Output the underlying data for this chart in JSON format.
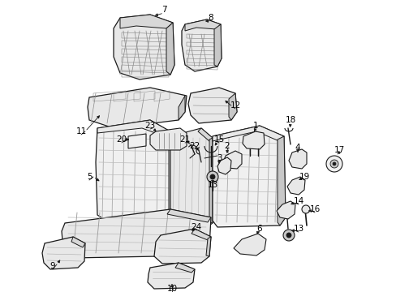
{
  "bg_color": "#ffffff",
  "line_color": "#1a1a1a",
  "text_color": "#000000",
  "fig_width": 4.89,
  "fig_height": 3.6,
  "dpi": 100,
  "shade1": "#d8d8d8",
  "shade2": "#e8e8e8",
  "shade3": "#c8c8c8",
  "shade4": "#f0f0f0"
}
